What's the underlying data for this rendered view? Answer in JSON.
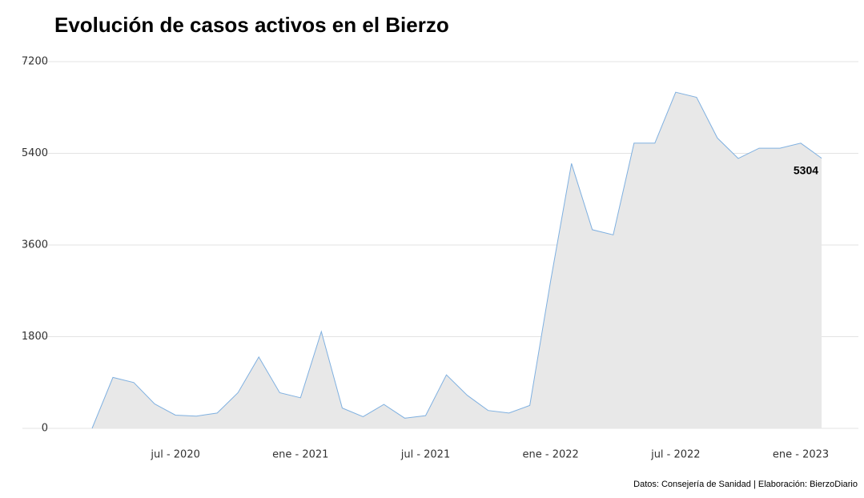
{
  "chart_data": {
    "type": "area",
    "title": "Evolución de casos activos en el Bierzo",
    "source": "Datos: Consejería de Sanidad | Elaboración: BierzoDiario",
    "x": [
      "2020-03",
      "2020-04",
      "2020-05",
      "2020-06",
      "2020-07",
      "2020-08",
      "2020-09",
      "2020-10",
      "2020-11",
      "2020-12",
      "2021-01",
      "2021-02",
      "2021-03",
      "2021-04",
      "2021-05",
      "2021-06",
      "2021-07",
      "2021-08",
      "2021-09",
      "2021-10",
      "2021-11",
      "2021-12",
      "2022-01",
      "2022-02",
      "2022-03",
      "2022-04",
      "2022-05",
      "2022-06",
      "2022-07",
      "2022-08",
      "2022-09",
      "2022-10",
      "2022-11",
      "2022-12",
      "2023-01",
      "2023-02"
    ],
    "series": [
      {
        "color": "#7fb0e0",
        "fill": "#e8e8e8",
        "values": [
          0,
          1000,
          900,
          480,
          260,
          240,
          300,
          700,
          1400,
          700,
          600,
          1900,
          400,
          230,
          470,
          200,
          250,
          1050,
          650,
          350,
          300,
          450,
          2900,
          5200,
          3900,
          3800,
          5600,
          5600,
          6600,
          6500,
          5700,
          5300,
          5500,
          5500,
          5600,
          5304
        ],
        "value_labels": {
          "35": "5304"
        }
      }
    ],
    "ylim": [
      0,
      7200
    ],
    "yticks": [
      0,
      1800,
      3600,
      5400,
      7200
    ],
    "xticks": [
      {
        "value": "2020-07",
        "label": "jul - 2020"
      },
      {
        "value": "2021-01",
        "label": "ene - 2021"
      },
      {
        "value": "2021-07",
        "label": "jul - 2021"
      },
      {
        "value": "2022-01",
        "label": "ene - 2022"
      },
      {
        "value": "2022-07",
        "label": "jul - 2022"
      },
      {
        "value": "2023-01",
        "label": "ene - 2023"
      }
    ],
    "grid": true
  }
}
